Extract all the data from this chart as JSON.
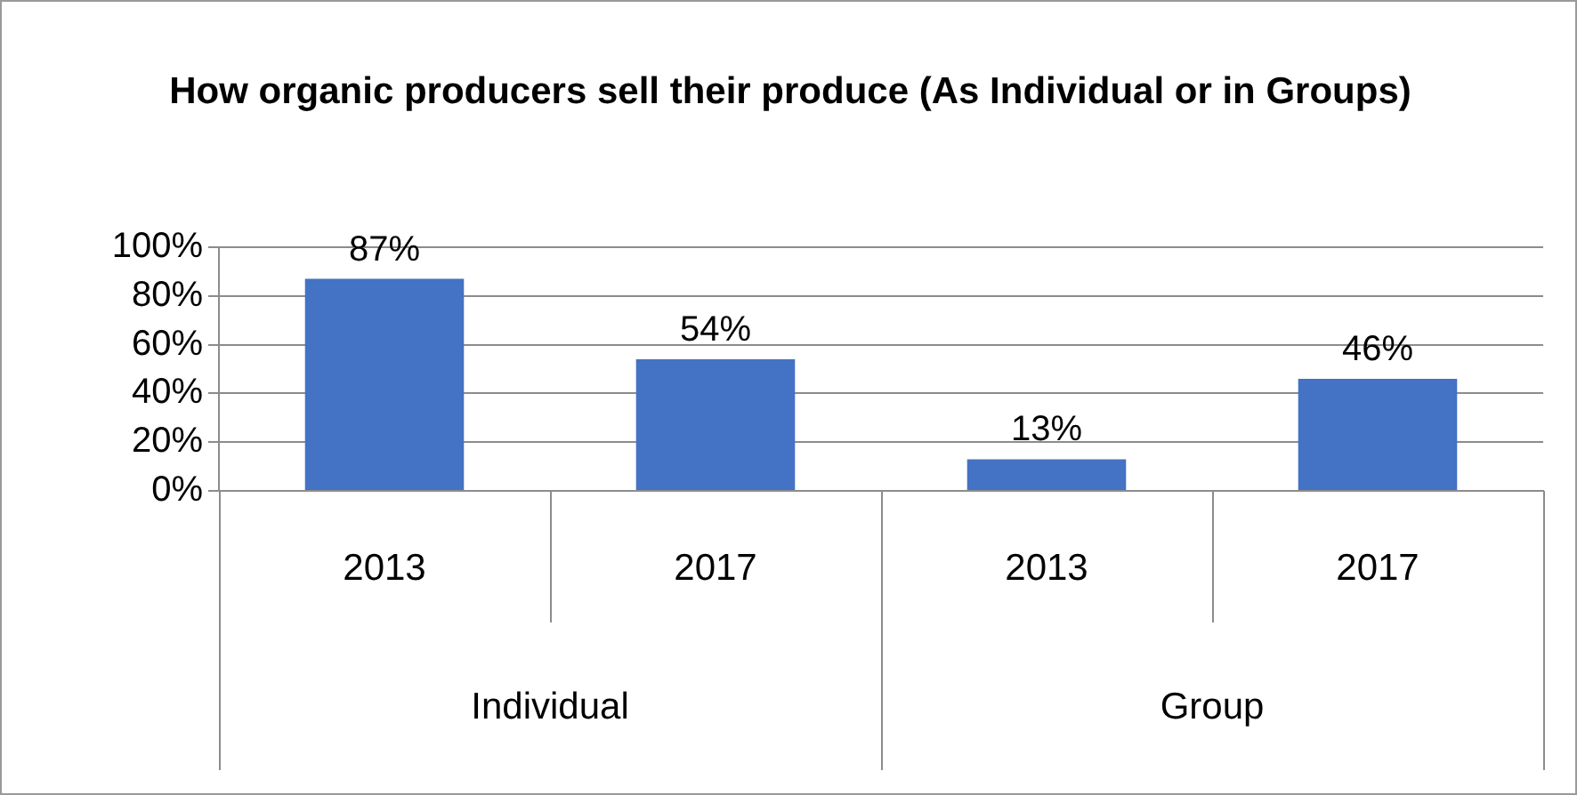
{
  "chart_data": {
    "type": "bar",
    "title": "How organic producers sell their produce (As Individual or in Groups)",
    "categories": [
      "2013",
      "2017",
      "2013",
      "2017"
    ],
    "values": [
      87,
      54,
      13,
      46
    ],
    "color": "#4472c4",
    "value_labels": [
      "87%",
      "54%",
      "13%",
      "46%"
    ],
    "ylim": [
      0,
      100
    ],
    "yticks": [
      {
        "value": 0,
        "label": "0%"
      },
      {
        "value": 20,
        "label": "20%"
      },
      {
        "value": 40,
        "label": "40%"
      },
      {
        "value": 60,
        "label": "60%"
      },
      {
        "value": 80,
        "label": "80%"
      },
      {
        "value": 100,
        "label": "100%"
      }
    ],
    "grid": "y",
    "legend": false,
    "annotations": [
      "Individual",
      "Group"
    ]
  }
}
